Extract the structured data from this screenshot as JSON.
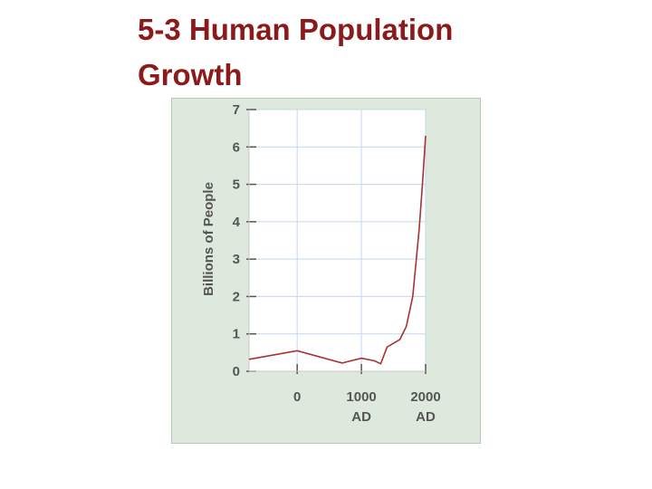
{
  "title": {
    "line1": "5-3 Human Population",
    "line2": "Growth"
  },
  "chart_data": {
    "type": "line",
    "title": "",
    "ylabel": "Billions of People",
    "xlabel": "",
    "ylim": [
      0,
      7
    ],
    "xlim": [
      -750,
      2000
    ],
    "y_ticks": [
      0,
      1,
      2,
      3,
      4,
      5,
      6,
      7
    ],
    "x_ticks": [
      {
        "value": 0,
        "label": "0",
        "sublabel": ""
      },
      {
        "value": 1000,
        "label": "1000",
        "sublabel": "AD"
      },
      {
        "value": 2000,
        "label": "2000",
        "sublabel": "AD"
      }
    ],
    "grid": true,
    "colors": {
      "line": "#a83232",
      "grid": "#c5d7ec",
      "plot_bg": "#ffffff",
      "axis": "#555555"
    },
    "series": [
      {
        "values": [
          {
            "x": -750,
            "y": 0.32
          },
          {
            "x": 0,
            "y": 0.55
          },
          {
            "x": 700,
            "y": 0.22
          },
          {
            "x": 1000,
            "y": 0.35
          },
          {
            "x": 1200,
            "y": 0.28
          },
          {
            "x": 1300,
            "y": 0.2
          },
          {
            "x": 1400,
            "y": 0.65
          },
          {
            "x": 1600,
            "y": 0.85
          },
          {
            "x": 1700,
            "y": 1.2
          },
          {
            "x": 1800,
            "y": 2.0
          },
          {
            "x": 1900,
            "y": 3.8
          },
          {
            "x": 1950,
            "y": 5.0
          },
          {
            "x": 2000,
            "y": 6.3
          }
        ]
      }
    ]
  }
}
